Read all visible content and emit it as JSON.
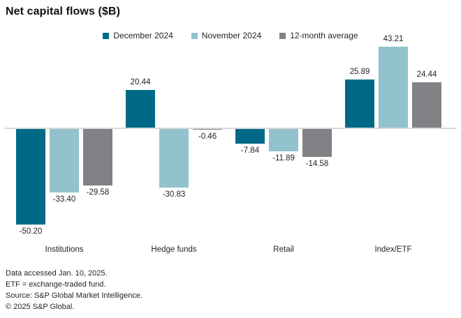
{
  "title": "Net capital flows ($B)",
  "chart_data": {
    "type": "bar",
    "title": "Net capital flows ($B)",
    "categories": [
      "Institutions",
      "Hedge funds",
      "Retail",
      "Index/ETF"
    ],
    "series": [
      {
        "name": "December 2024",
        "color": "#006A86",
        "values": [
          -50.2,
          20.44,
          -7.84,
          25.89
        ]
      },
      {
        "name": "November 2024",
        "color": "#92C2CC",
        "values": [
          -33.4,
          -30.83,
          -11.89,
          43.21
        ]
      },
      {
        "name": "12-month average",
        "color": "#808285",
        "values": [
          -29.58,
          -0.46,
          -14.58,
          24.44
        ]
      }
    ],
    "xlabel": "",
    "ylabel": "",
    "ylim": [
      -55,
      48
    ],
    "baseline_value": 0,
    "grid": false,
    "value_labels": true,
    "legend_position": "top-center",
    "axis_line_color": "#d9d9d9",
    "label_color": "#231f20"
  },
  "footer": {
    "lines": [
      "Data accessed Jan. 10, 2025.",
      "ETF = exchange-traded fund.",
      "Source: S&P Global Market Intelligence.",
      "© 2025 S&P Global."
    ]
  }
}
